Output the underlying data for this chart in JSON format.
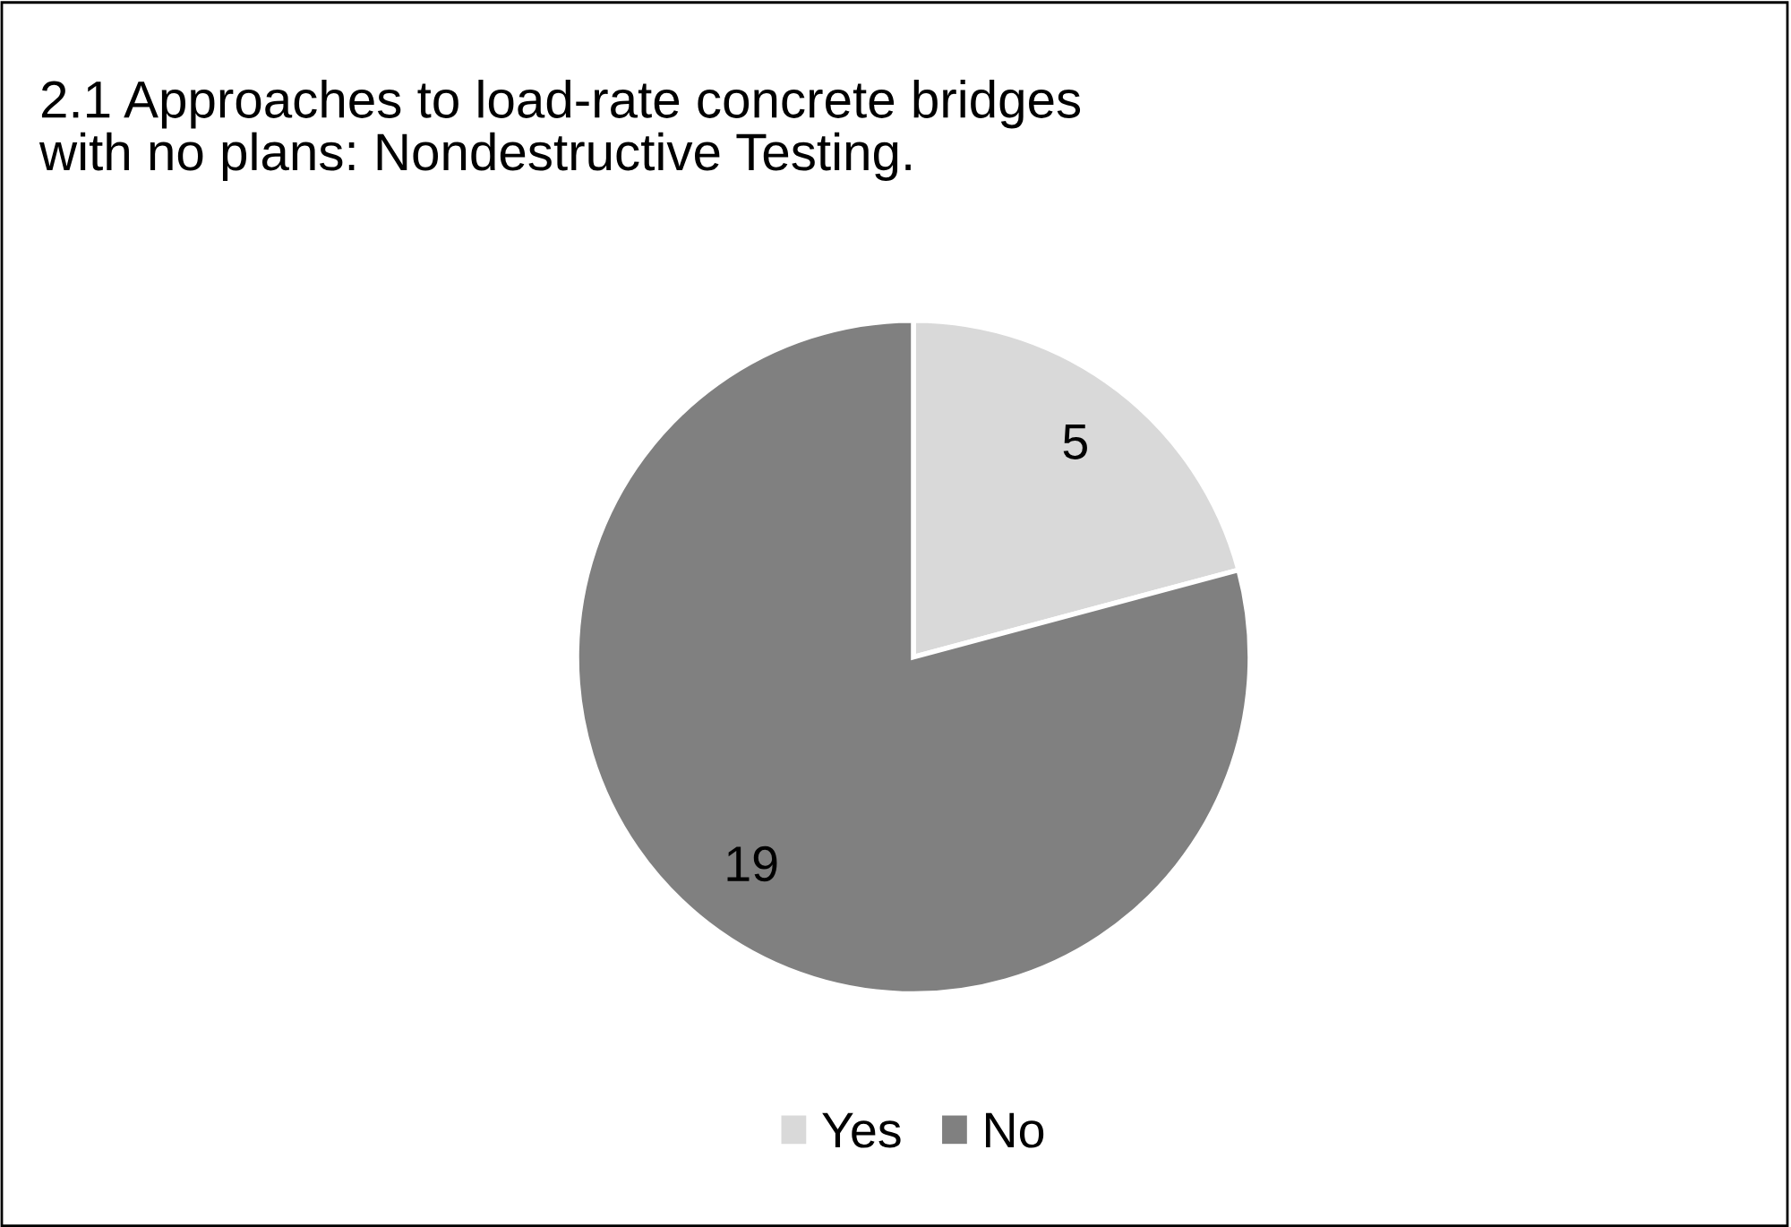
{
  "chart_data": {
    "type": "pie",
    "title": "2.1 Approaches to load-rate concrete bridges\nwith no plans: Nondestructive Testing.",
    "categories": [
      "Yes",
      "No"
    ],
    "values": [
      5,
      19
    ],
    "colors": [
      "#d9d9d9",
      "#808080"
    ],
    "data_labels": true,
    "legend": "bottom"
  }
}
